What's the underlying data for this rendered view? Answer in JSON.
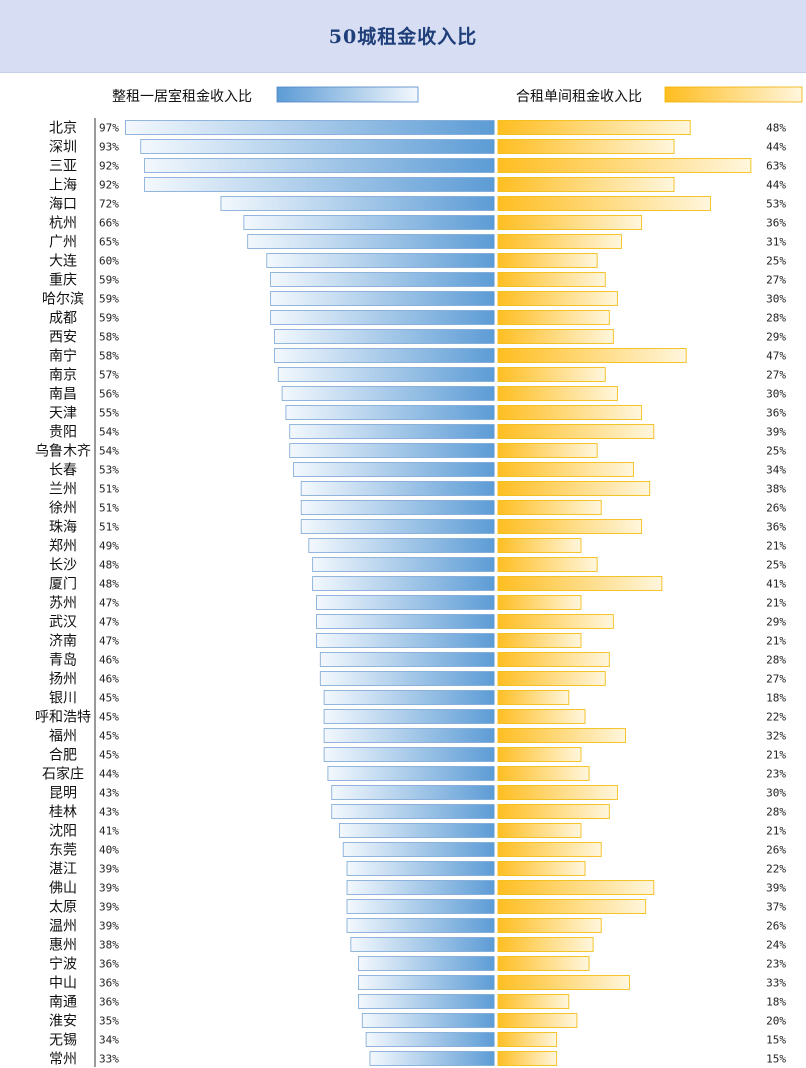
{
  "chart_data": {
    "type": "bar",
    "title": "50城租金收入比",
    "orientation": "horizontal-diverging",
    "xlabel": "",
    "ylabel": "",
    "legend": "top",
    "left_axis_max": 100,
    "right_axis_max": 65,
    "series": [
      {
        "name": "整租一居室租金收入比",
        "color": "#5b9bd5",
        "side": "left",
        "labels": [
          "97%",
          "93%",
          "92%",
          "92%",
          "72%",
          "66%",
          "65%",
          "60%",
          "59%",
          "59%",
          "59%",
          "58%",
          "58%",
          "57%",
          "56%",
          "55%",
          "54%",
          "54%",
          "53%",
          "51%",
          "51%",
          "51%",
          "49%",
          "48%",
          "48%",
          "47%",
          "47%",
          "47%",
          "46%",
          "46%",
          "45%",
          "45%",
          "45%",
          "45%",
          "44%",
          "43%",
          "43%",
          "41%",
          "40%",
          "39%",
          "39%",
          "39%",
          "39%",
          "38%",
          "36%",
          "36%",
          "36%",
          "35%",
          "34%",
          "33%"
        ],
        "values": [
          97,
          93,
          92,
          92,
          72,
          66,
          65,
          60,
          59,
          59,
          59,
          58,
          58,
          57,
          56,
          55,
          54,
          54,
          53,
          51,
          51,
          51,
          49,
          48,
          48,
          47,
          47,
          47,
          46,
          46,
          45,
          45,
          45,
          45,
          44,
          43,
          43,
          41,
          40,
          39,
          39,
          39,
          39,
          38,
          36,
          36,
          36,
          35,
          34,
          33
        ]
      },
      {
        "name": "合租单间租金收入比",
        "color": "#ffc000",
        "side": "right",
        "labels": [
          "48%",
          "44%",
          "63%",
          "44%",
          "53%",
          "36%",
          "31%",
          "25%",
          "27%",
          "30%",
          "28%",
          "29%",
          "47%",
          "27%",
          "30%",
          "36%",
          "39%",
          "25%",
          "34%",
          "38%",
          "26%",
          "36%",
          "21%",
          "25%",
          "41%",
          "21%",
          "29%",
          "21%",
          "28%",
          "27%",
          "18%",
          "22%",
          "32%",
          "21%",
          "23%",
          "30%",
          "28%",
          "21%",
          "26%",
          "22%",
          "39%",
          "37%",
          "26%",
          "24%",
          "23%",
          "33%",
          "18%",
          "20%",
          "15%",
          "15%"
        ],
        "values": [
          48,
          44,
          63,
          44,
          53,
          36,
          31,
          25,
          27,
          30,
          28,
          29,
          47,
          27,
          30,
          36,
          39,
          25,
          34,
          38,
          26,
          36,
          21,
          25,
          41,
          21,
          29,
          21,
          28,
          27,
          18,
          22,
          32,
          21,
          23,
          30,
          28,
          21,
          26,
          22,
          39,
          37,
          26,
          24,
          23,
          33,
          18,
          20,
          15,
          15
        ]
      }
    ],
    "categories": [
      "北京",
      "深圳",
      "三亚",
      "上海",
      "海口",
      "杭州",
      "广州",
      "大连",
      "重庆",
      "哈尔滨",
      "成都",
      "西安",
      "南宁",
      "南京",
      "南昌",
      "天津",
      "贵阳",
      "乌鲁木齐",
      "长春",
      "兰州",
      "徐州",
      "珠海",
      "郑州",
      "长沙",
      "厦门",
      "苏州",
      "武汉",
      "济南",
      "青岛",
      "扬州",
      "银川",
      "呼和浩特",
      "福州",
      "合肥",
      "石家庄",
      "昆明",
      "桂林",
      "沈阳",
      "东莞",
      "湛江",
      "佛山",
      "太原",
      "温州",
      "惠州",
      "宁波",
      "中山",
      "南通",
      "淮安",
      "无锡",
      "常州"
    ]
  }
}
